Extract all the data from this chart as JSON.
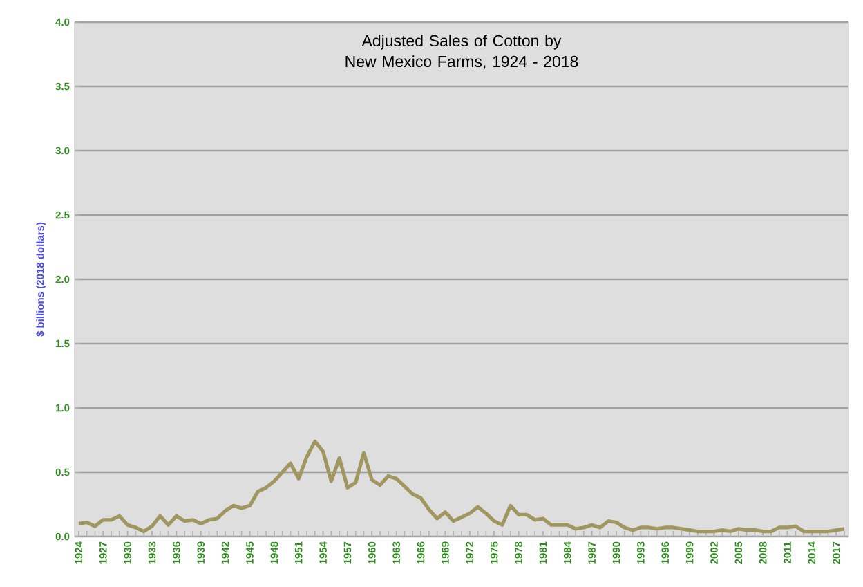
{
  "chart_data": {
    "type": "line",
    "title": "Adjusted Sales of Cotton by New Mexico Farms, 1924 - 2018",
    "ylabel": "$ billions (2018 dollars)",
    "categories": [
      "1924",
      null,
      null,
      "1927",
      null,
      null,
      "1930",
      null,
      null,
      "1933",
      null,
      null,
      "1936",
      null,
      null,
      "1939",
      null,
      null,
      "1942",
      null,
      null,
      "1945",
      null,
      null,
      "1948",
      null,
      null,
      "1951",
      null,
      null,
      "1954",
      null,
      null,
      "1957",
      null,
      null,
      "1960",
      null,
      null,
      "1963",
      null,
      null,
      "1966",
      null,
      null,
      "1969",
      null,
      null,
      "1972",
      null,
      null,
      "1975",
      null,
      null,
      "1978",
      null,
      null,
      "1981",
      null,
      null,
      "1984",
      null,
      null,
      "1987",
      null,
      null,
      "1990",
      null,
      null,
      "1993",
      null,
      null,
      "1996",
      null,
      null,
      "1999",
      null,
      null,
      "2002",
      null,
      null,
      "2005",
      null,
      null,
      "2008",
      null,
      null,
      "2011",
      null,
      null,
      "2014",
      null,
      null,
      "2017",
      null
    ],
    "series": [
      {
        "color": "#a09660",
        "values": [
          0.1,
          0.11,
          0.08,
          0.13,
          0.13,
          0.16,
          0.09,
          0.07,
          0.04,
          0.08,
          0.16,
          0.09,
          0.16,
          0.12,
          0.13,
          0.1,
          0.13,
          0.14,
          0.2,
          0.24,
          0.22,
          0.24,
          0.35,
          0.38,
          0.43,
          0.5,
          0.57,
          0.45,
          0.62,
          0.74,
          0.66,
          0.43,
          0.61,
          0.38,
          0.42,
          0.65,
          0.44,
          0.4,
          0.47,
          0.45,
          0.39,
          0.33,
          0.3,
          0.21,
          0.14,
          0.19,
          0.12,
          0.15,
          0.18,
          0.23,
          0.18,
          0.12,
          0.09,
          0.24,
          0.17,
          0.17,
          0.13,
          0.14,
          0.09,
          0.09,
          0.09,
          0.06,
          0.07,
          0.09,
          0.07,
          0.12,
          0.11,
          0.07,
          0.05,
          0.07,
          0.07,
          0.06,
          0.07,
          0.07,
          0.06,
          0.05,
          0.04,
          0.04,
          0.04,
          0.05,
          0.04,
          0.06,
          0.05,
          0.05,
          0.04,
          0.04,
          0.07,
          0.07,
          0.08,
          0.04,
          0.04,
          0.04,
          0.04,
          0.05,
          0.06
        ]
      }
    ],
    "ylim": [
      0,
      4
    ],
    "yticks": [
      {
        "value": 0,
        "label": "0.0"
      },
      {
        "value": 0.5,
        "label": "0.5"
      },
      {
        "value": 1,
        "label": "1.0"
      },
      {
        "value": 1.5,
        "label": "1.5"
      },
      {
        "value": 2,
        "label": "2.0"
      },
      {
        "value": 2.5,
        "label": "2.5"
      },
      {
        "value": 3,
        "label": "3.0"
      },
      {
        "value": 3.5,
        "label": "3.5"
      },
      {
        "value": 4,
        "label": "4.0"
      }
    ],
    "grid": "y"
  }
}
